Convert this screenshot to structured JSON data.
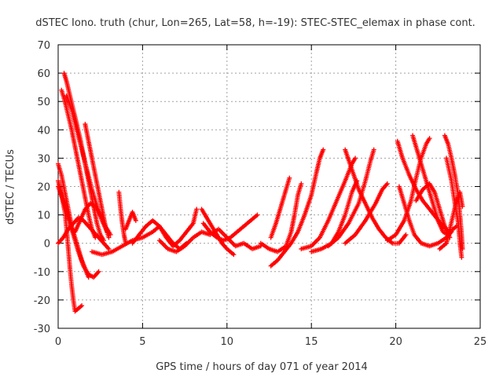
{
  "chart_data": {
    "type": "scatter",
    "title": "dSTEC Iono. truth (chur, Lon=265, Lat=58, h=-19): STEC-STEC_elemax in phase cont.",
    "xlabel": "GPS time / hours of day 071 of year 2014",
    "ylabel": "dSTEC  / TECUs",
    "xlim": [
      0,
      25
    ],
    "ylim": [
      -30,
      70
    ],
    "xticks": [
      0,
      5,
      10,
      15,
      20,
      25
    ],
    "yticks": [
      -30,
      -20,
      -10,
      0,
      10,
      20,
      30,
      40,
      50,
      60,
      70
    ],
    "grid": true,
    "marker": "+",
    "color": "#ff0000",
    "series": [
      {
        "values": [
          [
            0.35,
            60
          ],
          [
            0.5,
            57
          ],
          [
            0.7,
            52
          ],
          [
            0.9,
            47
          ],
          [
            1.1,
            42
          ],
          [
            1.3,
            37
          ],
          [
            1.5,
            31
          ],
          [
            1.7,
            25
          ],
          [
            1.9,
            19
          ],
          [
            2.1,
            13
          ],
          [
            2.3,
            7
          ],
          [
            2.5,
            3
          ],
          [
            2.7,
            1
          ]
        ]
      },
      {
        "values": [
          [
            0.2,
            54
          ],
          [
            0.4,
            50
          ],
          [
            0.6,
            45
          ],
          [
            0.8,
            40
          ],
          [
            1.0,
            34
          ],
          [
            1.2,
            28
          ],
          [
            1.4,
            22
          ],
          [
            1.6,
            16
          ],
          [
            1.8,
            10
          ],
          [
            2.0,
            5
          ],
          [
            2.2,
            2
          ]
        ]
      },
      {
        "values": [
          [
            0.5,
            52
          ],
          [
            0.8,
            47
          ],
          [
            1.1,
            40
          ],
          [
            1.4,
            33
          ],
          [
            1.7,
            26
          ],
          [
            2.0,
            19
          ],
          [
            2.3,
            13
          ],
          [
            2.6,
            8
          ],
          [
            2.9,
            4
          ]
        ]
      },
      {
        "values": [
          [
            0.0,
            28
          ],
          [
            0.2,
            24
          ],
          [
            0.4,
            18
          ],
          [
            0.6,
            12
          ],
          [
            0.8,
            6
          ],
          [
            1.0,
            2
          ],
          [
            1.2,
            -2
          ],
          [
            1.4,
            -6
          ],
          [
            1.6,
            -9
          ],
          [
            1.8,
            -12
          ]
        ]
      },
      {
        "values": [
          [
            0.0,
            20
          ],
          [
            0.3,
            15
          ],
          [
            0.6,
            9
          ],
          [
            0.9,
            3
          ],
          [
            1.2,
            -3
          ],
          [
            1.5,
            -8
          ],
          [
            1.8,
            -11
          ],
          [
            2.1,
            -12
          ],
          [
            2.4,
            -10
          ]
        ]
      },
      {
        "values": [
          [
            0.0,
            22
          ],
          [
            0.2,
            17
          ],
          [
            0.4,
            11
          ],
          [
            0.5,
            5
          ],
          [
            0.6,
            -2
          ],
          [
            0.7,
            -9
          ],
          [
            0.8,
            -15
          ],
          [
            0.9,
            -20
          ],
          [
            1.0,
            -24
          ],
          [
            1.2,
            -23
          ],
          [
            1.4,
            -22
          ]
        ]
      },
      {
        "values": [
          [
            1.6,
            42
          ],
          [
            1.8,
            36
          ],
          [
            2.0,
            30
          ],
          [
            2.2,
            24
          ],
          [
            2.4,
            18
          ],
          [
            2.6,
            12
          ],
          [
            2.8,
            6
          ],
          [
            3.0,
            2
          ]
        ]
      },
      {
        "values": [
          [
            0.0,
            0
          ],
          [
            0.3,
            2
          ],
          [
            0.6,
            5
          ],
          [
            0.9,
            7
          ],
          [
            1.2,
            9
          ],
          [
            1.5,
            8
          ],
          [
            1.8,
            6
          ],
          [
            2.1,
            4
          ],
          [
            2.4,
            2
          ],
          [
            2.7,
            0
          ],
          [
            3.0,
            -2
          ]
        ]
      },
      {
        "values": [
          [
            1.0,
            4
          ],
          [
            1.3,
            8
          ],
          [
            1.6,
            12
          ],
          [
            1.9,
            14
          ],
          [
            2.2,
            13
          ],
          [
            2.5,
            10
          ],
          [
            2.8,
            6
          ],
          [
            3.1,
            3
          ]
        ]
      },
      {
        "values": [
          [
            3.6,
            18
          ],
          [
            3.7,
            12
          ],
          [
            3.8,
            7
          ],
          [
            3.9,
            3
          ],
          [
            4.0,
            0
          ]
        ]
      },
      {
        "values": [
          [
            4.0,
            5
          ],
          [
            4.2,
            8
          ],
          [
            4.4,
            11
          ],
          [
            4.6,
            8
          ]
        ]
      },
      {
        "values": [
          [
            2.0,
            -3
          ],
          [
            2.6,
            -4
          ],
          [
            3.2,
            -3
          ],
          [
            3.8,
            -1
          ],
          [
            4.4,
            1
          ],
          [
            5.0,
            2
          ],
          [
            5.6,
            4
          ],
          [
            6.0,
            6
          ],
          [
            6.4,
            3
          ],
          [
            6.8,
            0
          ],
          [
            7.2,
            -2
          ],
          [
            7.6,
            0
          ]
        ]
      },
      {
        "values": [
          [
            4.4,
            0
          ],
          [
            4.8,
            3
          ],
          [
            5.2,
            6
          ],
          [
            5.6,
            8
          ],
          [
            6.0,
            6
          ],
          [
            6.4,
            2
          ],
          [
            6.8,
            -1
          ],
          [
            7.2,
            1
          ],
          [
            7.6,
            4
          ],
          [
            8.0,
            7
          ],
          [
            8.2,
            12
          ]
        ]
      },
      {
        "values": [
          [
            6.0,
            1
          ],
          [
            6.5,
            -2
          ],
          [
            7.0,
            -3
          ],
          [
            7.5,
            -1
          ],
          [
            8.0,
            2
          ],
          [
            8.5,
            4
          ],
          [
            9.0,
            3
          ],
          [
            9.5,
            5
          ],
          [
            10.0,
            2
          ],
          [
            10.5,
            -1
          ],
          [
            11.0,
            0
          ],
          [
            11.5,
            -2
          ],
          [
            12.0,
            -1
          ]
        ]
      },
      {
        "values": [
          [
            8.6,
            7
          ],
          [
            9.0,
            4
          ],
          [
            9.4,
            2
          ],
          [
            9.8,
            1
          ],
          [
            10.2,
            2
          ],
          [
            10.6,
            4
          ],
          [
            11.0,
            6
          ],
          [
            11.4,
            8
          ],
          [
            11.8,
            10
          ]
        ]
      },
      {
        "values": [
          [
            8.5,
            12
          ],
          [
            8.8,
            9
          ],
          [
            9.1,
            6
          ],
          [
            9.4,
            3
          ],
          [
            9.7,
            0
          ],
          [
            10.0,
            -2
          ],
          [
            10.4,
            -4
          ]
        ]
      },
      {
        "values": [
          [
            12.0,
            0
          ],
          [
            12.5,
            -2
          ],
          [
            13.0,
            -3
          ],
          [
            13.5,
            -1
          ],
          [
            13.8,
            4
          ],
          [
            14.0,
            10
          ],
          [
            14.2,
            17
          ],
          [
            14.4,
            21
          ]
        ]
      },
      {
        "values": [
          [
            12.6,
            -8
          ],
          [
            13.0,
            -6
          ],
          [
            13.4,
            -3
          ],
          [
            13.8,
            0
          ],
          [
            14.2,
            4
          ],
          [
            14.6,
            10
          ],
          [
            15.0,
            17
          ],
          [
            15.3,
            25
          ],
          [
            15.5,
            30
          ],
          [
            15.7,
            33
          ]
        ]
      },
      {
        "values": [
          [
            12.6,
            2
          ],
          [
            12.9,
            7
          ],
          [
            13.2,
            13
          ],
          [
            13.5,
            19
          ],
          [
            13.7,
            23
          ]
        ]
      },
      {
        "values": [
          [
            14.4,
            -2
          ],
          [
            15.0,
            -1
          ],
          [
            15.5,
            2
          ],
          [
            16.0,
            8
          ],
          [
            16.5,
            15
          ],
          [
            17.0,
            22
          ],
          [
            17.4,
            28
          ],
          [
            17.6,
            30
          ]
        ]
      },
      {
        "values": [
          [
            15.0,
            -3
          ],
          [
            15.6,
            -2
          ],
          [
            16.2,
            0
          ],
          [
            16.6,
            4
          ],
          [
            17.0,
            10
          ],
          [
            17.4,
            18
          ],
          [
            17.7,
            22
          ]
        ]
      },
      {
        "values": [
          [
            16.0,
            -1
          ],
          [
            16.6,
            2
          ],
          [
            17.2,
            7
          ],
          [
            17.8,
            14
          ],
          [
            18.2,
            22
          ],
          [
            18.5,
            29
          ],
          [
            18.7,
            33
          ]
        ]
      },
      {
        "values": [
          [
            17.0,
            0
          ],
          [
            17.6,
            3
          ],
          [
            18.2,
            8
          ],
          [
            18.8,
            14
          ],
          [
            19.2,
            19
          ],
          [
            19.5,
            21
          ]
        ]
      },
      {
        "values": [
          [
            17.0,
            33
          ],
          [
            17.4,
            26
          ],
          [
            17.8,
            19
          ],
          [
            18.2,
            14
          ],
          [
            18.6,
            9
          ],
          [
            19.0,
            5
          ],
          [
            19.4,
            2
          ],
          [
            19.8,
            0
          ],
          [
            20.2,
            0
          ],
          [
            20.6,
            3
          ]
        ]
      },
      {
        "values": [
          [
            19.5,
            1
          ],
          [
            20.0,
            3
          ],
          [
            20.5,
            8
          ],
          [
            20.9,
            15
          ],
          [
            21.2,
            23
          ],
          [
            21.5,
            30
          ],
          [
            21.8,
            35
          ],
          [
            22.0,
            37
          ]
        ]
      },
      {
        "values": [
          [
            20.1,
            36
          ],
          [
            20.4,
            30
          ],
          [
            20.8,
            24
          ],
          [
            21.2,
            19
          ],
          [
            21.6,
            15
          ],
          [
            22.0,
            12
          ],
          [
            22.4,
            9
          ],
          [
            22.8,
            6
          ],
          [
            23.2,
            4
          ],
          [
            23.6,
            6
          ]
        ]
      },
      {
        "values": [
          [
            21.0,
            38
          ],
          [
            21.3,
            32
          ],
          [
            21.6,
            26
          ],
          [
            21.9,
            20
          ],
          [
            22.2,
            14
          ],
          [
            22.5,
            8
          ],
          [
            22.8,
            4
          ],
          [
            23.1,
            3
          ]
        ]
      },
      {
        "values": [
          [
            20.2,
            20
          ],
          [
            20.5,
            14
          ],
          [
            20.8,
            8
          ],
          [
            21.1,
            3
          ],
          [
            21.5,
            0
          ],
          [
            22.0,
            -1
          ],
          [
            22.5,
            0
          ],
          [
            23.0,
            2
          ],
          [
            23.3,
            4
          ]
        ]
      },
      {
        "values": [
          [
            21.2,
            15
          ],
          [
            21.6,
            19
          ],
          [
            22.0,
            21
          ],
          [
            22.3,
            18
          ],
          [
            22.6,
            12
          ],
          [
            22.9,
            6
          ],
          [
            23.2,
            2
          ]
        ]
      },
      {
        "values": [
          [
            22.9,
            38
          ],
          [
            23.1,
            35
          ],
          [
            23.3,
            30
          ],
          [
            23.5,
            24
          ],
          [
            23.7,
            17
          ],
          [
            23.8,
            10
          ],
          [
            23.9,
            3
          ],
          [
            23.95,
            -2
          ]
        ]
      },
      {
        "values": [
          [
            22.6,
            -2
          ],
          [
            23.0,
            0
          ],
          [
            23.2,
            5
          ],
          [
            23.4,
            10
          ],
          [
            23.6,
            15
          ],
          [
            23.8,
            18
          ],
          [
            23.95,
            13
          ]
        ]
      },
      {
        "values": [
          [
            23.0,
            30
          ],
          [
            23.3,
            22
          ],
          [
            23.5,
            14
          ],
          [
            23.7,
            7
          ],
          [
            23.8,
            0
          ],
          [
            23.9,
            -5
          ]
        ]
      }
    ]
  }
}
